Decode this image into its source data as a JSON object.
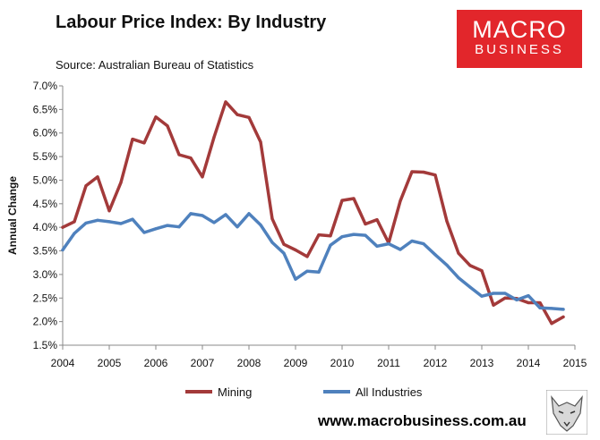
{
  "header": {
    "title": "Labour Price Index: By Industry",
    "source": "Source: Australian Bureau of Statistics"
  },
  "logo": {
    "line1": "MACRO",
    "line2": "BUSINESS"
  },
  "footer": {
    "url": "www.macrobusiness.com.au"
  },
  "colors": {
    "mining": "#a33a3a",
    "all": "#4f81bd",
    "logo_bg": "#e2262b"
  },
  "chart_data": {
    "type": "line",
    "title": "Labour Price Index: By Industry",
    "xlabel": "",
    "ylabel": "Annual Change",
    "xlim": [
      2004,
      2015
    ],
    "ylim": [
      1.5,
      7.0
    ],
    "y_ticks": [
      1.5,
      2.0,
      2.5,
      3.0,
      3.5,
      4.0,
      4.5,
      5.0,
      5.5,
      6.0,
      6.5,
      7.0
    ],
    "y_tick_labels": [
      "1.5%",
      "2.0%",
      "2.5%",
      "3.0%",
      "3.5%",
      "4.0%",
      "4.5%",
      "5.0%",
      "5.5%",
      "6.0%",
      "6.5%",
      "7.0%"
    ],
    "x_ticks": [
      2004,
      2005,
      2006,
      2007,
      2008,
      2009,
      2010,
      2011,
      2012,
      2013,
      2014,
      2015
    ],
    "x_tick_labels": [
      "2004",
      "2005",
      "2006",
      "2007",
      "2008",
      "2009",
      "2010",
      "2011",
      "2012",
      "2013",
      "2014",
      "2015"
    ],
    "legend_position": "bottom",
    "x": [
      2004.0,
      2004.25,
      2004.5,
      2004.75,
      2005.0,
      2005.25,
      2005.5,
      2005.75,
      2006.0,
      2006.25,
      2006.5,
      2006.75,
      2007.0,
      2007.25,
      2007.5,
      2007.75,
      2008.0,
      2008.25,
      2008.5,
      2008.75,
      2009.0,
      2009.25,
      2009.5,
      2009.75,
      2010.0,
      2010.25,
      2010.5,
      2010.75,
      2011.0,
      2011.25,
      2011.5,
      2011.75,
      2012.0,
      2012.25,
      2012.5,
      2012.75,
      2013.0,
      2013.25,
      2013.5,
      2013.75,
      2014.0,
      2014.25,
      2014.5,
      2014.75
    ],
    "series": [
      {
        "name": "Mining",
        "color": "#a33a3a",
        "values": [
          4.0,
          4.12,
          4.88,
          5.07,
          4.35,
          4.95,
          5.87,
          5.79,
          6.34,
          6.15,
          5.54,
          5.47,
          5.07,
          5.91,
          6.66,
          6.39,
          6.33,
          5.81,
          4.18,
          3.64,
          3.52,
          3.38,
          3.84,
          3.82,
          4.57,
          4.61,
          4.07,
          4.16,
          3.67,
          4.56,
          5.18,
          5.17,
          5.11,
          4.13,
          3.45,
          3.19,
          3.08,
          2.35,
          2.5,
          2.49,
          2.4,
          2.4,
          1.96,
          2.1
        ]
      },
      {
        "name": "All Industries",
        "color": "#4f81bd",
        "values": [
          3.52,
          3.87,
          4.09,
          4.15,
          4.12,
          4.08,
          4.17,
          3.89,
          3.97,
          4.04,
          4.01,
          4.29,
          4.25,
          4.1,
          4.27,
          4.01,
          4.29,
          4.05,
          3.68,
          3.45,
          2.9,
          3.07,
          3.05,
          3.62,
          3.8,
          3.85,
          3.83,
          3.6,
          3.65,
          3.53,
          3.71,
          3.65,
          3.42,
          3.2,
          2.93,
          2.73,
          2.54,
          2.6,
          2.6,
          2.46,
          2.55,
          2.29,
          2.28,
          2.26
        ]
      }
    ]
  }
}
